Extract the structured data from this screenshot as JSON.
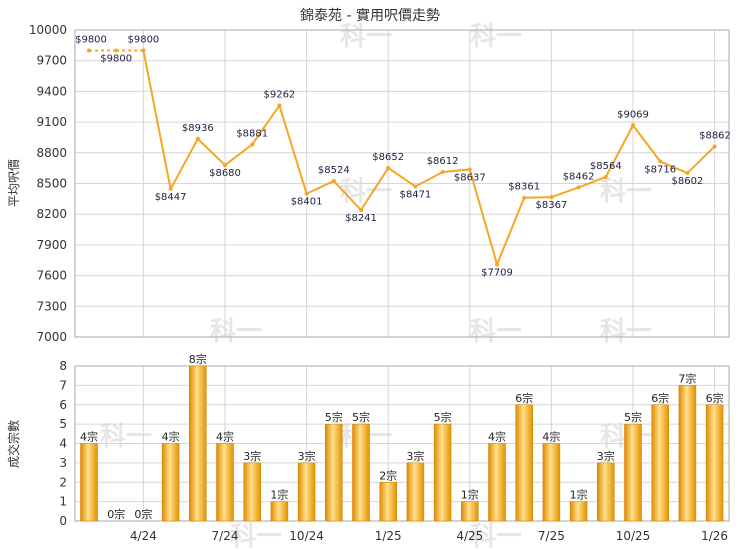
{
  "chart_data": [
    {
      "type": "line",
      "title": "錦泰苑 - 實用呎價走勢",
      "ylabel": "平均呎價",
      "ylim": [
        7000,
        10000
      ],
      "yticks": [
        7000,
        7300,
        7600,
        7900,
        8200,
        8500,
        8800,
        9100,
        9400,
        9700,
        10000
      ],
      "grid": true,
      "color": "#f5a623",
      "values": [
        9800,
        9800,
        9800,
        8447,
        8936,
        8680,
        8881,
        9262,
        8401,
        8524,
        8241,
        8652,
        8471,
        8612,
        8637,
        7709,
        8361,
        8367,
        8462,
        8564,
        9069,
        8716,
        8602,
        8862
      ],
      "labels": [
        "$9800",
        "$9800",
        "$9800",
        "$8447",
        "$8936",
        "$8680",
        "$8881",
        "$9262",
        "$8401",
        "$8524",
        "$8241",
        "$8652",
        "$8471",
        "$8612",
        "$8637",
        "$7709",
        "$8361",
        "$8367",
        "$8462",
        "$8564",
        "$9069",
        "$8716",
        "$8602",
        "$8862"
      ],
      "dashed_segments": [
        0,
        1
      ]
    },
    {
      "type": "bar",
      "ylabel": "成交宗數",
      "ylim": [
        0,
        8
      ],
      "yticks": [
        0,
        1,
        2,
        3,
        4,
        5,
        6,
        7,
        8
      ],
      "grid": true,
      "color": "#f5a623",
      "values": [
        4,
        0,
        0,
        4,
        8,
        4,
        3,
        1,
        3,
        5,
        5,
        2,
        3,
        5,
        1,
        4,
        6,
        4,
        1,
        3,
        5,
        6,
        7,
        6
      ],
      "labels": [
        "4宗",
        "0宗",
        "0宗",
        "4宗",
        "8宗",
        "4宗",
        "3宗",
        "1宗",
        "3宗",
        "5宗",
        "5宗",
        "2宗",
        "3宗",
        "5宗",
        "1宗",
        "4宗",
        "6宗",
        "4宗",
        "1宗",
        "3宗",
        "5宗",
        "6宗",
        "7宗",
        "6宗"
      ]
    }
  ],
  "x_tick_labels": [
    {
      "index": 2,
      "label": "4/24"
    },
    {
      "index": 5,
      "label": "7/24"
    },
    {
      "index": 8,
      "label": "10/24"
    },
    {
      "index": 11,
      "label": "1/25"
    },
    {
      "index": 14,
      "label": "4/25"
    },
    {
      "index": 17,
      "label": "7/25"
    },
    {
      "index": 20,
      "label": "10/25"
    },
    {
      "index": 23,
      "label": "1/26"
    }
  ],
  "watermark": "科一"
}
